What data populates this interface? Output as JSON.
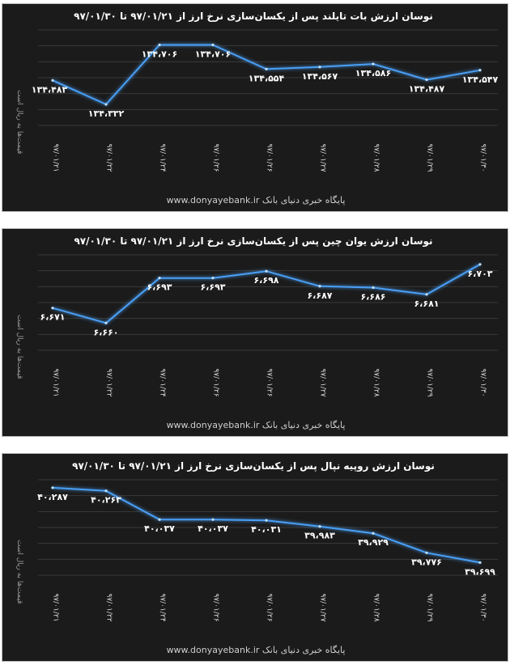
{
  "footer": {
    "site": "www.donyayebank.ir",
    "source": "پایگاه خبری دنیای بانک"
  },
  "chart_data": [
    {
      "type": "line",
      "title": "نوسان ارزش بات تایلند پس از یکسان‌سازی نرخ ارز از ۹۷/۰۱/۲۱ تا ۹۷/۰۱/۳۰",
      "ylabel": "قیمت‌ها به ریال است",
      "xlabel": "",
      "categories": [
        "۹۷/۰۱/۲۱",
        "۹۷/۰۱/۲۲",
        "۹۷/۰۱/۲۴",
        "۹۷/۰۱/۲۶",
        "۹۷/۰۱/۲۶",
        "۹۷/۰۱/۲۷",
        "۹۷/۰۱/۲۸",
        "۹۷/۰۱/۲۹",
        "۹۷/۰۱/۳۰"
      ],
      "values": [
        134.483,
        134.332,
        134.706,
        134.706,
        134.554,
        134.567,
        134.586,
        134.487,
        134.547
      ],
      "value_labels": [
        "۱۳۴،۴۸۳",
        "۱۳۴،۳۳۲",
        "۱۳۴،۷۰۶",
        "۱۳۴،۷۰۶",
        "۱۳۴،۵۵۴",
        "۱۳۴،۵۶۷",
        "۱۳۴،۵۸۶",
        "۱۳۴،۴۸۷",
        "۱۳۴،۵۴۷"
      ],
      "label_pos": [
        "right",
        "below",
        "below",
        "below",
        "below",
        "below",
        "below",
        "below",
        "below"
      ],
      "ylim": [
        134.2,
        134.8
      ],
      "grid": true,
      "color": "#4a9ff5"
    },
    {
      "type": "line",
      "title": "نوسان ارزش یوان چین پس از یکسان‌سازی نرخ ارز از ۹۷/۰۱/۲۱ تا ۹۷/۰۱/۳۰",
      "ylabel": "قیمت‌ها به ریال است",
      "xlabel": "",
      "categories": [
        "۹۷/۰۱/۲۱",
        "۹۷/۰۱/۲۲",
        "۹۷/۰۱/۲۴",
        "۹۷/۰۱/۲۶",
        "۹۷/۰۱/۲۶",
        "۹۷/۰۱/۲۷",
        "۹۷/۰۱/۲۸",
        "۹۷/۰۱/۲۹",
        "۹۷/۰۱/۳۰"
      ],
      "values": [
        6.671,
        6.66,
        6.693,
        6.693,
        6.698,
        6.687,
        6.686,
        6.681,
        6.703
      ],
      "value_labels": [
        "۶،۶۷۱",
        "۶،۶۶۰",
        "۶،۶۹۳",
        "۶،۶۹۳",
        "۶،۶۹۸",
        "۶،۶۸۷",
        "۶،۶۸۶",
        "۶،۶۸۱",
        "۶،۷۰۳"
      ],
      "label_pos": [
        "below",
        "below",
        "below",
        "below",
        "below",
        "below",
        "below",
        "below",
        "below"
      ],
      "ylim": [
        6.64,
        6.71
      ],
      "grid": true,
      "color": "#4a9ff5"
    },
    {
      "type": "line",
      "title": "نوسان ارزش روپیه نپال پس از یکسان‌سازی نرخ ارز از ۹۷/۰۱/۲۱ تا ۹۷/۰۱/۳۰",
      "ylabel": "قیمت‌ها به ریال است",
      "xlabel": "",
      "categories": [
        "۹۷/۰۱/۲۱",
        "۹۷/۰۱/۲۲",
        "۹۷/۰۱/۲۴",
        "۹۷/۰۱/۲۶",
        "۹۷/۰۱/۲۶",
        "۹۷/۰۱/۲۷",
        "۹۷/۰۱/۲۸",
        "۹۷/۰۱/۲۹",
        "۹۷/۰۱/۳۰"
      ],
      "values": [
        40.287,
        40.263,
        40.037,
        40.037,
        40.031,
        39.983,
        39.929,
        39.776,
        39.699
      ],
      "value_labels": [
        "۴۰،۲۸۷",
        "۴۰،۲۶۳",
        "۴۰،۰۳۷",
        "۴۰،۰۳۷",
        "۴۰،۰۳۱",
        "۳۹،۹۸۳",
        "۳۹،۹۲۹",
        "۳۹،۷۷۶",
        "۳۹،۶۹۹"
      ],
      "label_pos": [
        "below",
        "below",
        "below",
        "below",
        "below",
        "below",
        "below",
        "below",
        "below"
      ],
      "ylim": [
        39.6,
        40.35
      ],
      "grid": true,
      "color": "#4a9ff5"
    }
  ]
}
